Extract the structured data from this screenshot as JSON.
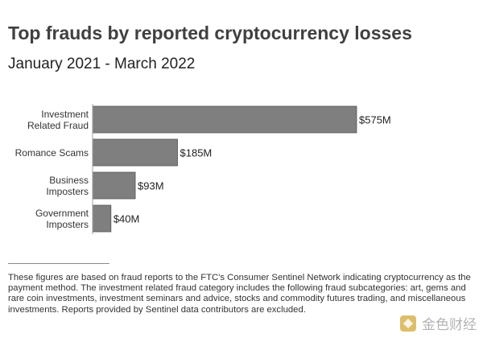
{
  "header": {
    "title": "Top frauds by reported cryptocurrency losses",
    "subtitle": "January 2021 - March 2022"
  },
  "chart_data": {
    "type": "bar",
    "orientation": "horizontal",
    "title": "Top frauds by reported cryptocurrency losses",
    "subtitle": "January 2021 - March 2022",
    "categories": [
      [
        "Investment",
        "Related Fraud"
      ],
      [
        "Romance Scams"
      ],
      [
        "Business",
        "Imposters"
      ],
      [
        "Government",
        "Imposters"
      ]
    ],
    "values": [
      575,
      185,
      93,
      40
    ],
    "data_labels": [
      "$575M",
      "$185M",
      "$93M",
      "$40M"
    ],
    "unit": "$M",
    "xlim": [
      0,
      575
    ],
    "grid": false,
    "legend": "none",
    "bar_color": "#7f7f7f",
    "bar_edge_color": "#555555",
    "axis_color": "#9e9e9e"
  },
  "footnote": "These figures are based on fraud reports to the FTC's Consumer Sentinel Network indicating cryptocurrency as the payment method. The investment related fraud category includes the following fraud subcategories: art, gems and rare coin investments, investment seminars and advice, stocks and commodity futures trading, and miscellaneous investments. Reports provided by Sentinel data contributors are excluded.",
  "watermark": {
    "icon": "jinse-logo-icon",
    "text": "金色财经"
  }
}
